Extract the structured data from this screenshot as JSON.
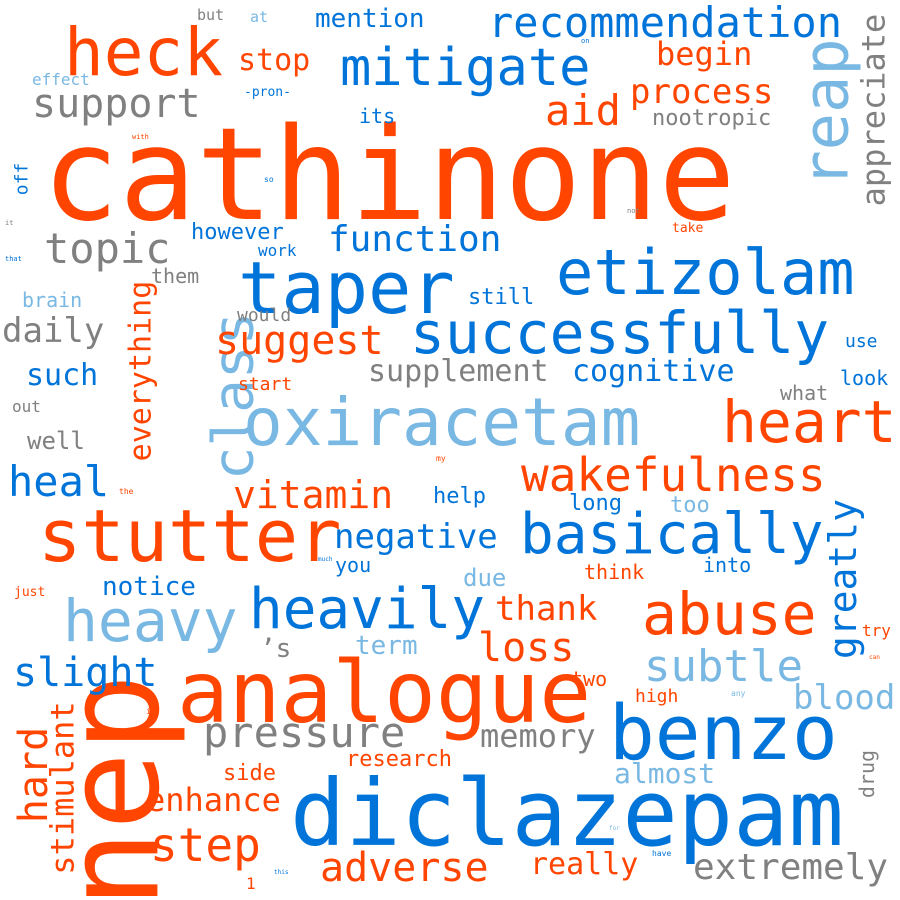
{
  "palette": {
    "orange": "#ff4500",
    "blue": "#0074d9",
    "lightblue": "#79b8e3",
    "gray": "#808080"
  },
  "words": [
    {
      "text": "cathinone",
      "color": "orange"
    },
    {
      "text": "nep",
      "color": "orange"
    },
    {
      "text": "diclazepam",
      "color": "blue"
    },
    {
      "text": "analogue",
      "color": "orange"
    },
    {
      "text": "oxiracetam",
      "color": "lightblue"
    },
    {
      "text": "benzo",
      "color": "blue"
    },
    {
      "text": "etizolam",
      "color": "blue"
    },
    {
      "text": "taper",
      "color": "blue"
    },
    {
      "text": "stutter",
      "color": "orange"
    },
    {
      "text": "reap",
      "color": "lightblue"
    },
    {
      "text": "heck",
      "color": "orange"
    },
    {
      "text": "successfully",
      "color": "blue"
    },
    {
      "text": "basically",
      "color": "blue"
    },
    {
      "text": "heavily",
      "color": "blue"
    },
    {
      "text": "mitigate",
      "color": "blue"
    },
    {
      "text": "recommendation",
      "color": "blue"
    },
    {
      "text": "class",
      "color": "lightblue"
    },
    {
      "text": "heavy",
      "color": "lightblue"
    },
    {
      "text": "wakefulness",
      "color": "orange"
    },
    {
      "text": "abuse",
      "color": "orange"
    },
    {
      "text": "heart",
      "color": "orange"
    },
    {
      "text": "subtle",
      "color": "lightblue"
    },
    {
      "text": "pressure",
      "color": "gray"
    },
    {
      "text": "topic",
      "color": "gray"
    },
    {
      "text": "suggest",
      "color": "orange"
    },
    {
      "text": "support",
      "color": "gray"
    },
    {
      "text": "vitamin",
      "color": "orange"
    },
    {
      "text": "adverse",
      "color": "orange"
    },
    {
      "text": "step",
      "color": "orange"
    },
    {
      "text": "function",
      "color": "blue"
    },
    {
      "text": "slight",
      "color": "blue"
    },
    {
      "text": "heal",
      "color": "blue"
    },
    {
      "text": "aid",
      "color": "orange"
    },
    {
      "text": "greatly",
      "color": "blue"
    },
    {
      "text": "hard",
      "color": "orange"
    },
    {
      "text": "extremely",
      "color": "gray"
    },
    {
      "text": "loss",
      "color": "orange"
    },
    {
      "text": "negative",
      "color": "blue"
    },
    {
      "text": "process",
      "color": "orange"
    },
    {
      "text": "supplement",
      "color": "gray"
    },
    {
      "text": "cognitive",
      "color": "blue"
    },
    {
      "text": "enhance",
      "color": "orange"
    },
    {
      "text": "appreciate",
      "color": "gray"
    },
    {
      "text": "everything",
      "color": "orange"
    },
    {
      "text": "stimulant",
      "color": "orange"
    },
    {
      "text": "blood",
      "color": "lightblue"
    },
    {
      "text": "memory",
      "color": "gray"
    },
    {
      "text": "thank",
      "color": "orange"
    },
    {
      "text": "daily",
      "color": "gray"
    },
    {
      "text": "begin",
      "color": "orange"
    },
    {
      "text": "notice",
      "color": "blue"
    },
    {
      "text": "almost",
      "color": "lightblue"
    },
    {
      "text": "really",
      "color": "orange"
    },
    {
      "text": "mention",
      "color": "blue"
    },
    {
      "text": "stop",
      "color": "orange"
    },
    {
      "text": "such",
      "color": "blue"
    },
    {
      "text": "well",
      "color": "gray"
    },
    {
      "text": "nootropic",
      "color": "gray"
    },
    {
      "text": "however",
      "color": "blue"
    },
    {
      "text": "term",
      "color": "lightblue"
    },
    {
      "text": "research",
      "color": "orange"
    },
    {
      "text": "help",
      "color": "blue"
    },
    {
      "text": "due",
      "color": "lightblue"
    },
    {
      "text": "long",
      "color": "blue"
    },
    {
      "text": "too",
      "color": "lightblue"
    },
    {
      "text": "side",
      "color": "orange"
    },
    {
      "text": "’s",
      "color": "gray"
    },
    {
      "text": "still",
      "color": "blue"
    },
    {
      "text": "brain",
      "color": "lightblue"
    },
    {
      "text": "them",
      "color": "gray"
    },
    {
      "text": "its",
      "color": "blue"
    },
    {
      "text": "think",
      "color": "orange"
    },
    {
      "text": "two",
      "color": "orange"
    },
    {
      "text": "high",
      "color": "orange"
    },
    {
      "text": "what",
      "color": "gray"
    },
    {
      "text": "look",
      "color": "blue"
    },
    {
      "text": "use",
      "color": "blue"
    },
    {
      "text": "try",
      "color": "orange"
    },
    {
      "text": "drug",
      "color": "gray"
    },
    {
      "text": "you",
      "color": "blue"
    },
    {
      "text": "into",
      "color": "blue"
    },
    {
      "text": "would",
      "color": "gray"
    },
    {
      "text": "start",
      "color": "orange"
    },
    {
      "text": "work",
      "color": "blue"
    },
    {
      "text": "effect",
      "color": "lightblue"
    },
    {
      "text": "off",
      "color": "blue"
    },
    {
      "text": "out",
      "color": "gray"
    },
    {
      "text": "but",
      "color": "gray"
    },
    {
      "text": "at",
      "color": "lightblue"
    },
    {
      "text": "-pron-",
      "color": "blue"
    },
    {
      "text": "take",
      "color": "orange"
    },
    {
      "text": "just",
      "color": "orange"
    },
    {
      "text": "1",
      "color": "orange"
    },
    {
      "text": "on",
      "color": "blue"
    },
    {
      "text": "with",
      "color": "orange"
    },
    {
      "text": "so",
      "color": "blue"
    },
    {
      "text": "not",
      "color": "gray"
    },
    {
      "text": "it",
      "color": "gray"
    },
    {
      "text": "that",
      "color": "blue"
    },
    {
      "text": "my",
      "color": "orange"
    },
    {
      "text": "the",
      "color": "orange"
    },
    {
      "text": "much",
      "color": "blue"
    },
    {
      "text": "can",
      "color": "orange"
    },
    {
      "text": "any",
      "color": "lightblue"
    },
    {
      "text": "i",
      "color": "orange"
    },
    {
      "text": "for",
      "color": "lightblue"
    },
    {
      "text": "this",
      "color": "blue"
    },
    {
      "text": "have",
      "color": "blue"
    }
  ]
}
